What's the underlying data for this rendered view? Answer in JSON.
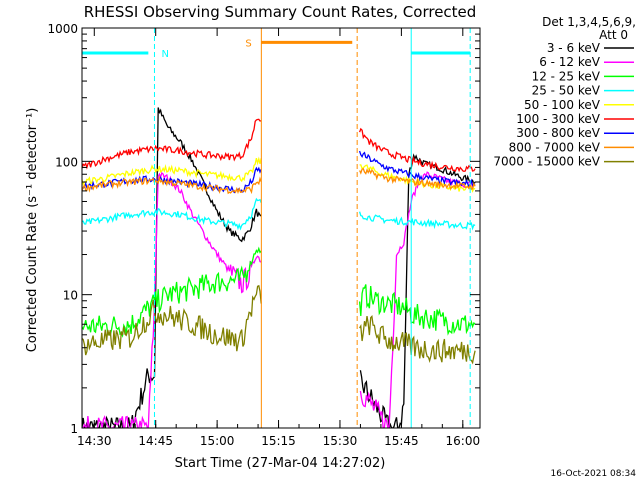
{
  "chart_data": {
    "type": "line",
    "title": "RHESSI Observing Summary Count Rates, Corrected",
    "xlabel": "Start Time (27-Mar-04 14:27:02)",
    "ylabel": "Corrected Count Rate (s⁻¹ detector⁻¹)",
    "yscale": "log",
    "ylim": [
      1,
      1000
    ],
    "xlim_minutes": [
      14.45,
      16.07
    ],
    "x_tick_labels": [
      "14:30",
      "14:45",
      "15:00",
      "15:15",
      "15:30",
      "15:45",
      "16:00"
    ],
    "x_ticks": [
      14.5,
      14.75,
      15.0,
      15.25,
      15.5,
      15.75,
      16.0
    ],
    "y_tick_labels": [
      "1",
      "10",
      "100",
      "1000"
    ],
    "y_ticks": [
      1,
      10,
      100,
      1000
    ],
    "legend_header": [
      "Det 1,3,4,5,6,9,",
      "Att 0"
    ],
    "legend_position": "right",
    "timestamp": "16-Oct-2021 08:34",
    "gap_hours": [
      15.18,
      15.58
    ],
    "series": [
      {
        "name": "3 - 6 keV",
        "color": "#000000",
        "x": [
          14.45,
          14.55,
          14.65,
          14.72,
          14.745,
          14.76,
          14.8,
          14.85,
          14.9,
          14.95,
          15.0,
          15.05,
          15.1,
          15.13,
          15.16,
          15.7,
          15.74,
          15.76,
          15.78,
          15.8,
          15.85,
          15.9,
          15.95,
          16.0,
          16.05
        ],
        "y": [
          1,
          1,
          1,
          2.5,
          2.5,
          250,
          180,
          140,
          100,
          65,
          42,
          30,
          26,
          30,
          42,
          1,
          1,
          1.5,
          80,
          110,
          95,
          90,
          82,
          75,
          70
        ]
      },
      {
        "name": "6 - 12 keV",
        "color": "#ff00ff",
        "x": [
          14.45,
          14.6,
          14.72,
          14.745,
          14.76,
          14.8,
          14.85,
          14.9,
          14.95,
          15.0,
          15.05,
          15.1,
          15.13,
          15.16,
          15.7,
          15.73,
          15.76,
          15.79,
          15.82,
          15.85,
          15.9,
          15.95,
          16.0,
          16.05
        ],
        "y": [
          1,
          1,
          1,
          8,
          80,
          75,
          60,
          40,
          28,
          20,
          15,
          12,
          14,
          20,
          1,
          20,
          25,
          50,
          70,
          80,
          75,
          70,
          68,
          66
        ]
      },
      {
        "name": "12 - 25 keV",
        "color": "#00ff00",
        "x": [
          14.45,
          14.55,
          14.65,
          14.74,
          14.8,
          14.9,
          15.0,
          15.1,
          15.13,
          15.16,
          15.58,
          15.6,
          15.65,
          15.7,
          15.76,
          15.8,
          15.9,
          16.0,
          16.05
        ],
        "y": [
          5.8,
          5.8,
          6,
          8.5,
          10,
          11,
          12.5,
          13,
          16,
          22,
          8,
          10,
          9,
          8.5,
          8,
          7,
          6.5,
          6,
          6
        ]
      },
      {
        "name": "25 - 50 keV",
        "color": "#00ffff",
        "x": [
          14.45,
          14.55,
          14.65,
          14.75,
          14.85,
          14.95,
          15.05,
          15.1,
          15.14,
          15.16,
          15.58,
          15.62,
          15.66,
          15.7,
          15.8,
          15.9,
          16.0,
          16.05
        ],
        "y": [
          34,
          37,
          40,
          42,
          40,
          36,
          34,
          33,
          40,
          50,
          40,
          38,
          37,
          36,
          35,
          34,
          33,
          33
        ]
      },
      {
        "name": "50 - 100 keV",
        "color": "#ffff00",
        "x": [
          14.45,
          14.55,
          14.65,
          14.75,
          14.85,
          14.95,
          15.05,
          15.1,
          15.14,
          15.16,
          15.58,
          15.62,
          15.66,
          15.7,
          15.8,
          15.9,
          16.0,
          16.05
        ],
        "y": [
          70,
          75,
          82,
          88,
          85,
          80,
          77,
          75,
          82,
          100,
          95,
          88,
          82,
          78,
          70,
          65,
          62,
          62
        ]
      },
      {
        "name": "100 - 300 keV",
        "color": "#ff0000",
        "x": [
          14.45,
          14.55,
          14.65,
          14.75,
          14.85,
          14.95,
          15.05,
          15.1,
          15.14,
          15.16,
          15.58,
          15.62,
          15.66,
          15.7,
          15.8,
          15.9,
          16.0,
          16.05
        ],
        "y": [
          90,
          105,
          118,
          125,
          120,
          112,
          108,
          110,
          150,
          210,
          170,
          140,
          125,
          115,
          100,
          92,
          88,
          88
        ]
      },
      {
        "name": "300 - 800 keV",
        "color": "#0000ff",
        "x": [
          14.45,
          14.55,
          14.65,
          14.75,
          14.85,
          14.95,
          15.05,
          15.1,
          15.14,
          15.16,
          15.58,
          15.62,
          15.66,
          15.7,
          15.8,
          15.9,
          16.0,
          16.05
        ],
        "y": [
          65,
          68,
          72,
          74,
          70,
          66,
          62,
          60,
          70,
          85,
          115,
          105,
          95,
          88,
          78,
          72,
          68,
          68
        ]
      },
      {
        "name": "800 - 7000 keV",
        "color": "#ff8c00",
        "x": [
          14.45,
          14.55,
          14.65,
          14.75,
          14.85,
          14.95,
          15.05,
          15.1,
          15.14,
          15.16,
          15.58,
          15.62,
          15.66,
          15.7,
          15.8,
          15.9,
          16.0,
          16.05
        ],
        "y": [
          63,
          67,
          70,
          72,
          68,
          64,
          61,
          60,
          62,
          70,
          85,
          82,
          78,
          74,
          70,
          67,
          65,
          65
        ]
      },
      {
        "name": "7000 - 15000 keV",
        "color": "#808000",
        "x": [
          14.45,
          14.55,
          14.65,
          14.74,
          14.8,
          14.9,
          15.0,
          15.1,
          15.13,
          15.16,
          15.58,
          15.62,
          15.66,
          15.7,
          15.76,
          15.8,
          15.9,
          16.0,
          16.05
        ],
        "y": [
          4.2,
          4.5,
          4.8,
          7.5,
          7,
          6,
          5,
          4.5,
          7,
          10,
          5,
          6,
          5,
          4.5,
          4.3,
          4,
          3.8,
          3.8,
          3.8
        ]
      }
    ],
    "annotations": [
      {
        "label": "N",
        "color": "#00ffff",
        "bar_x": [
          14.45,
          14.72
        ],
        "bar_y": 650,
        "line_x": 14.745,
        "line2_x": 16.03,
        "bar2_x": [
          15.79,
          16.03
        ],
        "solid_x": 15.79
      },
      {
        "label": "S",
        "color": "#ff8c00",
        "bar_x": [
          15.18,
          15.55
        ],
        "bar_y": 780,
        "solid_x": 15.18,
        "dash_x": 15.57
      }
    ]
  }
}
